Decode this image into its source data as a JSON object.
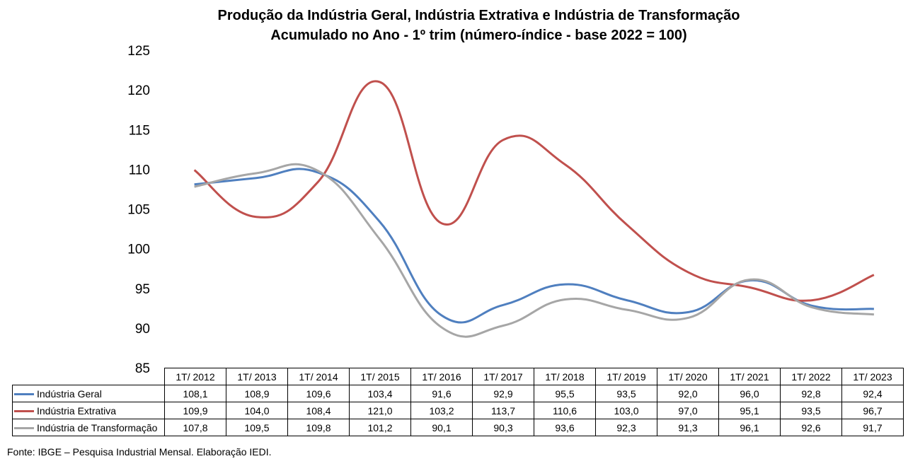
{
  "chart_data": {
    "type": "line",
    "title": "Produção da Indústria Geral, Indústria Extrativa e Indústria de Transformação",
    "subtitle": "Acumulado no Ano - 1º trim (número-índice - base 2022 = 100)",
    "categories": [
      "1T/ 2012",
      "1T/ 2013",
      "1T/ 2014",
      "1T/ 2015",
      "1T/ 2016",
      "1T/ 2017",
      "1T/ 2018",
      "1T/ 2019",
      "1T/ 2020",
      "1T/ 2021",
      "1T/ 2022",
      "1T/ 2023"
    ],
    "series": [
      {
        "name": "Indústria Geral",
        "color": "#4F7FBF",
        "values": [
          108.1,
          108.9,
          109.6,
          103.4,
          91.6,
          92.9,
          95.5,
          93.5,
          92.0,
          96.0,
          92.8,
          92.4
        ],
        "labels": [
          "108,1",
          "108,9",
          "109,6",
          "103,4",
          "91,6",
          "92,9",
          "95,5",
          "93,5",
          "92,0",
          "96,0",
          "92,8",
          "92,4"
        ]
      },
      {
        "name": "Indústria Extrativa",
        "color": "#C0504D",
        "values": [
          109.9,
          104.0,
          108.4,
          121.0,
          103.2,
          113.7,
          110.6,
          103.0,
          97.0,
          95.1,
          93.5,
          96.7
        ],
        "labels": [
          "109,9",
          "104,0",
          "108,4",
          "121,0",
          "103,2",
          "113,7",
          "110,6",
          "103,0",
          "97,0",
          "95,1",
          "93,5",
          "96,7"
        ]
      },
      {
        "name": "Indústria de Transformação",
        "color": "#A6A6A6",
        "values": [
          107.8,
          109.5,
          109.8,
          101.2,
          90.1,
          90.3,
          93.6,
          92.3,
          91.3,
          96.1,
          92.6,
          91.7
        ],
        "labels": [
          "107,8",
          "109,5",
          "109,8",
          "101,2",
          "90,1",
          "90,3",
          "93,6",
          "92,3",
          "91,3",
          "96,1",
          "92,6",
          "91,7"
        ]
      }
    ],
    "yticks": [
      "125",
      "120",
      "115",
      "110",
      "105",
      "100",
      "95",
      "90",
      "85"
    ],
    "ylim": [
      85,
      125
    ],
    "grid": false,
    "legend": "data-table"
  },
  "source": "Fonte: IBGE – Pesquisa Industrial Mensal. Elaboração IEDI."
}
